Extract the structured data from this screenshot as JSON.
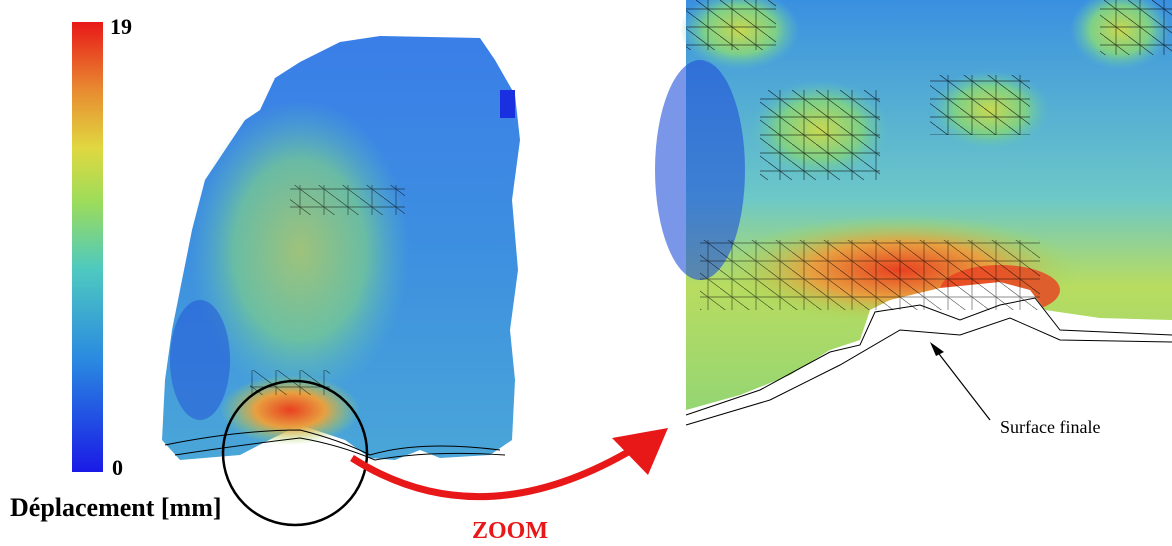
{
  "colorbar": {
    "min": 0,
    "max": 19,
    "label": "Déplacement [mm]"
  },
  "zoom_label": "ZOOM",
  "annotation": "Surface finale"
}
